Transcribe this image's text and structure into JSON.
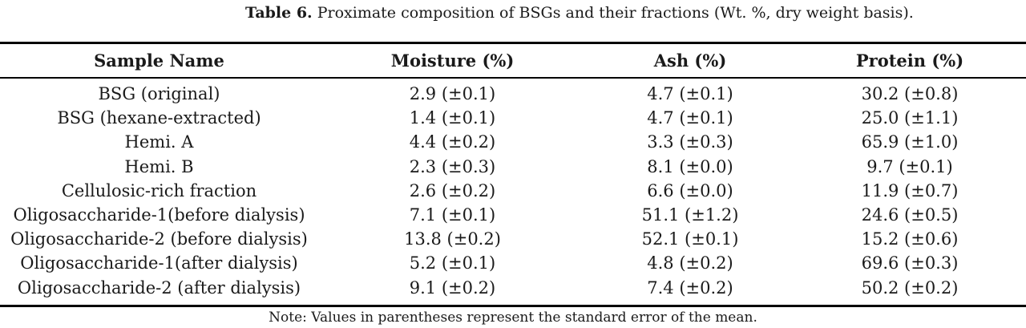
{
  "caption": {
    "label": "Table 6.",
    "text": "Proximate composition of BSGs and their fractions (Wt. %, dry weight basis)."
  },
  "table": {
    "headers": [
      "Sample Name",
      "Moisture (%)",
      "Ash (%)",
      "Protein (%)"
    ],
    "rows": [
      [
        "BSG (original)",
        "2.9 (±0.1)",
        "4.7 (±0.1)",
        "30.2 (±0.8)"
      ],
      [
        "BSG (hexane-extracted)",
        "1.4 (±0.1)",
        "4.7 (±0.1)",
        "25.0 (±1.1)"
      ],
      [
        "Hemi. A",
        "4.4 (±0.2)",
        "3.3 (±0.3)",
        "65.9 (±1.0)"
      ],
      [
        "Hemi. B",
        "2.3 (±0.3)",
        "8.1 (±0.0)",
        "9.7 (±0.1)"
      ],
      [
        "Cellulosic-rich fraction",
        "2.6 (±0.2)",
        "6.6 (±0.0)",
        "11.9 (±0.7)"
      ],
      [
        "Oligosaccharide-1(before dialysis)",
        "7.1 (±0.1)",
        "51.1 (±1.2)",
        "24.6 (±0.5)"
      ],
      [
        "Oligosaccharide-2 (before dialysis)",
        "13.8 (±0.2)",
        "52.1 (±0.1)",
        "15.2 (±0.6)"
      ],
      [
        "Oligosaccharide-1(after dialysis)",
        "5.2 (±0.1)",
        "4.8 (±0.2)",
        "69.6 (±0.3)"
      ],
      [
        "Oligosaccharide-2 (after dialysis)",
        "9.1 (±0.2)",
        "7.4 (±0.2)",
        "50.2 (±0.2)"
      ]
    ]
  },
  "note": "Note: Values in parentheses represent the standard error of the mean."
}
